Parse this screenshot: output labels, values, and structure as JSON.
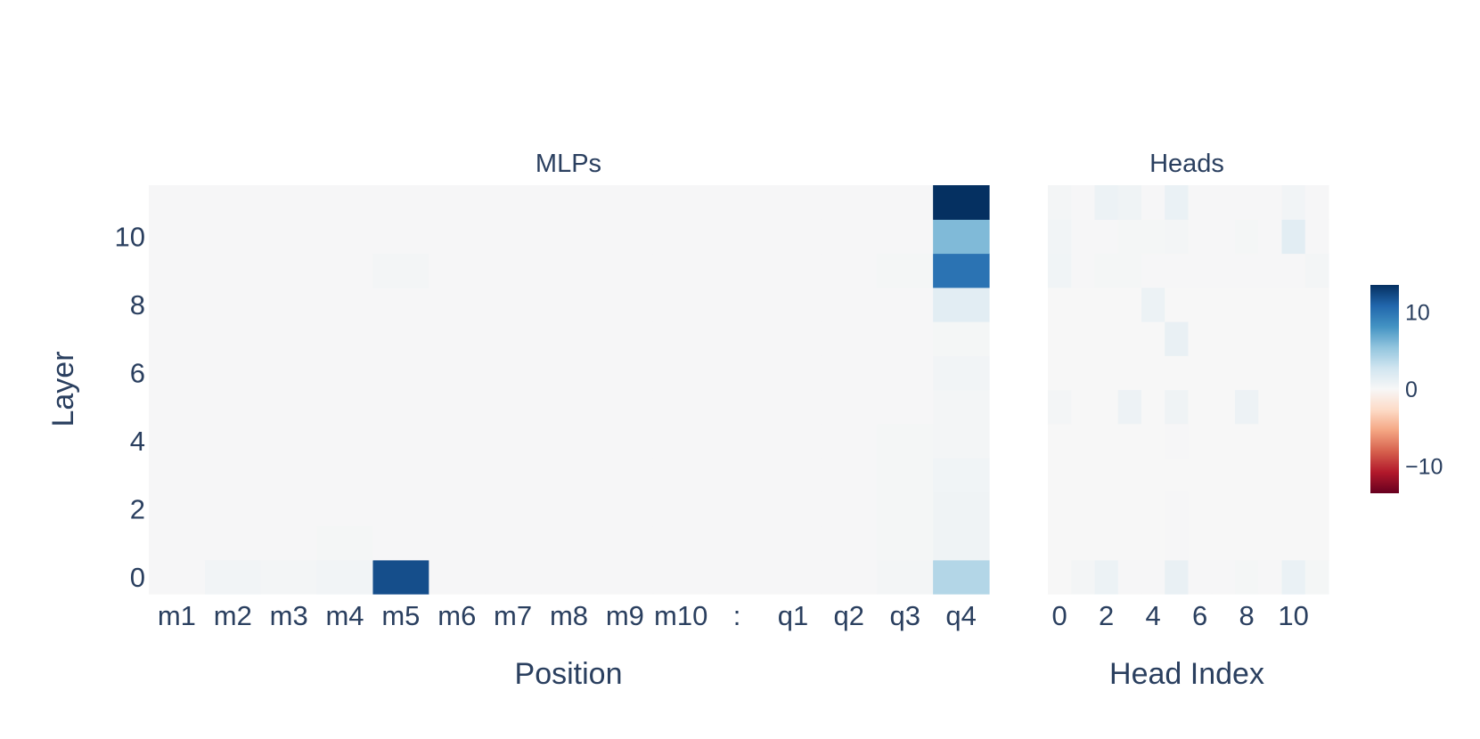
{
  "chart_data": [
    {
      "type": "heatmap",
      "title": "MLPs",
      "xlabel": "Position",
      "ylabel": "Layer",
      "x_categories": [
        "m1",
        "m2",
        "m3",
        "m4",
        "m5",
        "m6",
        "m7",
        "m8",
        "m9",
        "m10",
        ":",
        "q1",
        "q2",
        "q3",
        "q4"
      ],
      "y_categories": [
        0,
        1,
        2,
        3,
        4,
        5,
        6,
        7,
        8,
        9,
        10,
        11
      ],
      "y_ticks": [
        "0",
        "2",
        "4",
        "6",
        "8",
        "10"
      ],
      "values": [
        [
          0.1,
          0.4,
          0.3,
          0.4,
          12.0,
          0.1,
          0.1,
          0.1,
          0.1,
          0.1,
          0.1,
          0.1,
          0.1,
          0.3,
          4.0
        ],
        [
          0.1,
          0.1,
          0.1,
          0.2,
          0.1,
          0.1,
          0.1,
          0.1,
          0.1,
          0.1,
          0.1,
          0.1,
          0.1,
          0.2,
          0.6
        ],
        [
          0.1,
          0.1,
          0.1,
          0.1,
          0.1,
          0.1,
          0.1,
          0.1,
          0.1,
          0.1,
          0.1,
          0.1,
          0.1,
          0.2,
          0.6
        ],
        [
          0.1,
          0.1,
          0.1,
          0.1,
          0.1,
          0.1,
          0.1,
          0.1,
          0.1,
          0.1,
          0.1,
          0.1,
          0.1,
          0.2,
          0.5
        ],
        [
          0.1,
          0.1,
          0.1,
          0.1,
          0.1,
          0.1,
          0.1,
          0.1,
          0.1,
          0.1,
          0.1,
          0.1,
          0.1,
          0.2,
          0.3
        ],
        [
          0.1,
          0.1,
          0.1,
          0.1,
          0.1,
          0.1,
          0.1,
          0.1,
          0.1,
          0.1,
          0.1,
          0.1,
          0.1,
          0.1,
          0.3
        ],
        [
          0.1,
          0.1,
          0.1,
          0.1,
          0.1,
          0.1,
          0.1,
          0.1,
          0.1,
          0.1,
          0.1,
          0.1,
          0.1,
          0.1,
          0.4
        ],
        [
          0.1,
          0.1,
          0.1,
          0.1,
          0.1,
          0.1,
          0.1,
          0.1,
          0.1,
          0.1,
          0.1,
          0.1,
          0.1,
          0.1,
          0.2
        ],
        [
          0.1,
          0.1,
          0.1,
          0.1,
          0.1,
          0.1,
          0.1,
          0.1,
          0.1,
          0.1,
          0.1,
          0.1,
          0.1,
          0.1,
          1.5
        ],
        [
          0.1,
          0.1,
          0.1,
          0.1,
          0.3,
          0.1,
          0.1,
          0.1,
          0.1,
          0.1,
          0.1,
          0.1,
          0.1,
          0.2,
          10.0
        ],
        [
          0.1,
          0.1,
          0.1,
          0.1,
          0.1,
          0.1,
          0.1,
          0.1,
          0.1,
          0.1,
          0.1,
          0.1,
          0.1,
          0.1,
          6.0
        ],
        [
          0.1,
          0.1,
          0.1,
          0.1,
          0.1,
          0.1,
          0.1,
          0.1,
          0.1,
          0.1,
          0.1,
          0.1,
          0.1,
          0.1,
          13.5
        ]
      ]
    },
    {
      "type": "heatmap",
      "title": "Heads",
      "xlabel": "Head Index",
      "ylabel": "",
      "x_categories": [
        0,
        1,
        2,
        3,
        4,
        5,
        6,
        7,
        8,
        9,
        10,
        11
      ],
      "x_ticks": [
        "0",
        "2",
        "4",
        "6",
        "8",
        "10"
      ],
      "y_categories": [
        0,
        1,
        2,
        3,
        4,
        5,
        6,
        7,
        8,
        9,
        10,
        11
      ],
      "values": [
        [
          0.0,
          0.3,
          0.8,
          0.1,
          0.1,
          1.0,
          0.1,
          0.1,
          0.2,
          0.1,
          0.9,
          0.2
        ],
        [
          0.0,
          0.0,
          0.0,
          0.0,
          0.0,
          0.1,
          0.0,
          0.0,
          0.0,
          0.0,
          0.0,
          0.0
        ],
        [
          0.0,
          0.0,
          0.0,
          0.0,
          0.0,
          0.1,
          0.0,
          0.0,
          0.0,
          0.0,
          0.0,
          0.0
        ],
        [
          0.0,
          0.0,
          0.0,
          0.0,
          0.0,
          0.0,
          0.0,
          0.0,
          0.0,
          0.0,
          0.0,
          0.0
        ],
        [
          0.0,
          0.0,
          0.0,
          0.0,
          0.0,
          0.1,
          0.0,
          0.0,
          0.0,
          0.0,
          0.0,
          0.0
        ],
        [
          0.3,
          0.0,
          0.0,
          0.7,
          0.0,
          0.6,
          0.0,
          0.0,
          0.7,
          0.0,
          0.0,
          0.0
        ],
        [
          0.0,
          0.0,
          0.0,
          0.0,
          0.0,
          0.0,
          0.0,
          0.0,
          0.0,
          0.0,
          0.0,
          0.0
        ],
        [
          0.0,
          0.0,
          0.0,
          0.0,
          0.0,
          1.0,
          0.0,
          0.0,
          0.0,
          0.0,
          0.0,
          0.0
        ],
        [
          0.0,
          0.0,
          0.0,
          0.0,
          0.8,
          0.0,
          0.0,
          0.0,
          0.0,
          0.0,
          0.0,
          0.0
        ],
        [
          0.5,
          0.1,
          0.2,
          0.2,
          0.1,
          0.1,
          0.1,
          0.1,
          0.1,
          0.1,
          0.1,
          0.3
        ],
        [
          0.4,
          0.1,
          0.1,
          0.2,
          0.2,
          0.3,
          0.1,
          0.1,
          0.2,
          0.1,
          1.5,
          0.1
        ],
        [
          0.3,
          0.1,
          0.8,
          0.6,
          0.1,
          0.9,
          0.1,
          0.1,
          0.1,
          0.1,
          0.4,
          0.1
        ]
      ]
    }
  ],
  "colorbar": {
    "range": [
      -13.5,
      13.5
    ],
    "ticks": [
      {
        "value": 10,
        "label": "10"
      },
      {
        "value": 0,
        "label": "0"
      },
      {
        "value": -10,
        "label": "−10"
      }
    ],
    "colorscale": [
      "#67001f",
      "#b2182b",
      "#d6604d",
      "#f4a582",
      "#fddbc7",
      "#f7f7f7",
      "#d1e5f0",
      "#92c5de",
      "#4393c3",
      "#2166ac",
      "#053061"
    ]
  }
}
